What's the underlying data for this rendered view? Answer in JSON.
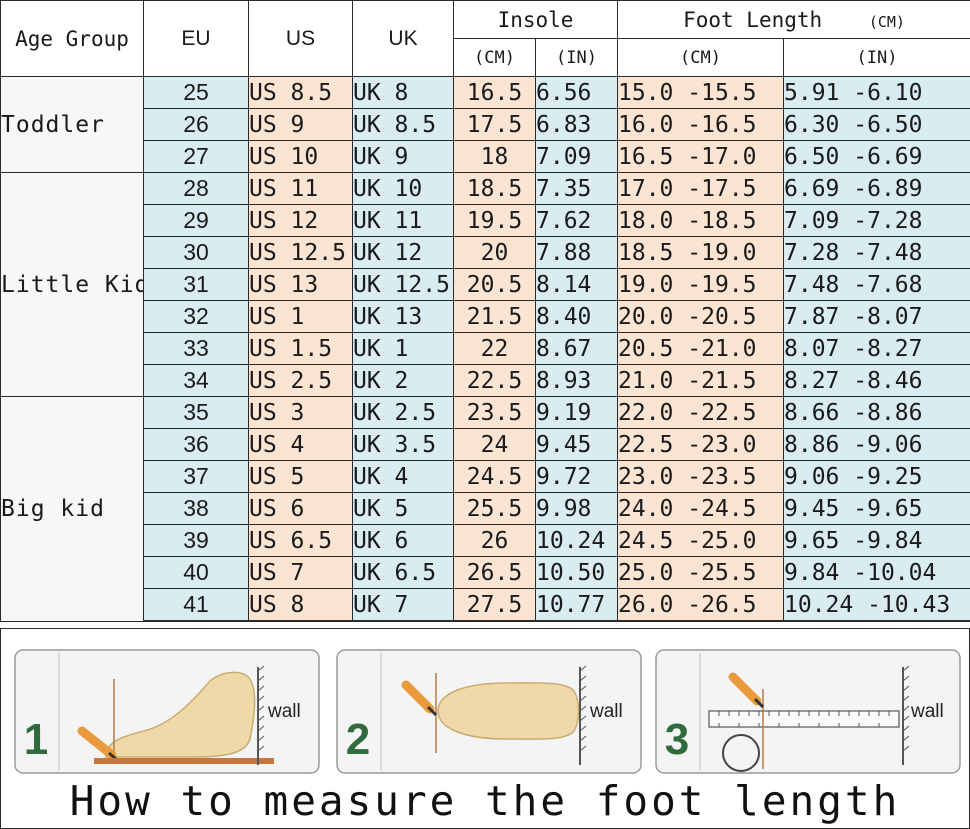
{
  "table": {
    "headers": {
      "age_group": "Age Group",
      "eu": "EU",
      "us": "US",
      "uk": "UK",
      "insole": "Insole",
      "foot_length": "Foot Length",
      "foot_length_unit": "(CM)",
      "insole_cm": "(CM)",
      "insole_in": "(IN)",
      "foot_cm": "(CM)",
      "foot_in": "(IN)"
    },
    "groups": [
      "Toddler",
      "Little Kid",
      "Big kid"
    ],
    "rows": [
      {
        "eu": "25",
        "us": "US 8.5",
        "uk": "UK 8",
        "insole_cm": "16.5",
        "insole_in": "6.56",
        "foot_cm": "15.0 -15.5",
        "foot_in": "5.91 -6.10"
      },
      {
        "eu": "26",
        "us": "US 9",
        "uk": "UK 8.5",
        "insole_cm": "17.5",
        "insole_in": "6.83",
        "foot_cm": "16.0 -16.5",
        "foot_in": "6.30 -6.50"
      },
      {
        "eu": "27",
        "us": "US 10",
        "uk": "UK 9",
        "insole_cm": "18",
        "insole_in": "7.09",
        "foot_cm": "16.5 -17.0",
        "foot_in": "6.50 -6.69"
      },
      {
        "eu": "28",
        "us": "US 11",
        "uk": "UK 10",
        "insole_cm": "18.5",
        "insole_in": "7.35",
        "foot_cm": "17.0 -17.5",
        "foot_in": "6.69 -6.89"
      },
      {
        "eu": "29",
        "us": "US 12",
        "uk": "UK 11",
        "insole_cm": "19.5",
        "insole_in": "7.62",
        "foot_cm": "18.0 -18.5",
        "foot_in": "7.09 -7.28"
      },
      {
        "eu": "30",
        "us": "US 12.5",
        "uk": "UK 12",
        "insole_cm": "20",
        "insole_in": "7.88",
        "foot_cm": "18.5 -19.0",
        "foot_in": "7.28 -7.48"
      },
      {
        "eu": "31",
        "us": "US 13",
        "uk": "UK 12.5",
        "insole_cm": "20.5",
        "insole_in": "8.14",
        "foot_cm": "19.0 -19.5",
        "foot_in": "7.48 -7.68"
      },
      {
        "eu": "32",
        "us": "US 1",
        "uk": "UK 13",
        "insole_cm": "21.5",
        "insole_in": "8.40",
        "foot_cm": "20.0 -20.5",
        "foot_in": "7.87 -8.07"
      },
      {
        "eu": "33",
        "us": "US 1.5",
        "uk": "UK 1",
        "insole_cm": "22",
        "insole_in": "8.67",
        "foot_cm": "20.5 -21.0",
        "foot_in": "8.07 -8.27"
      },
      {
        "eu": "34",
        "us": "US 2.5",
        "uk": "UK 2",
        "insole_cm": "22.5",
        "insole_in": "8.93",
        "foot_cm": "21.0 -21.5",
        "foot_in": "8.27 -8.46"
      },
      {
        "eu": "35",
        "us": "US 3",
        "uk": "UK 2.5",
        "insole_cm": "23.5",
        "insole_in": "9.19",
        "foot_cm": "22.0 -22.5",
        "foot_in": "8.66 -8.86"
      },
      {
        "eu": "36",
        "us": "US 4",
        "uk": "UK 3.5",
        "insole_cm": "24",
        "insole_in": "9.45",
        "foot_cm": "22.5 -23.0",
        "foot_in": "8.86 -9.06"
      },
      {
        "eu": "37",
        "us": "US 5",
        "uk": "UK 4",
        "insole_cm": "24.5",
        "insole_in": "9.72",
        "foot_cm": "23.0 -23.5",
        "foot_in": "9.06 -9.25"
      },
      {
        "eu": "38",
        "us": "US 6",
        "uk": "UK 5",
        "insole_cm": "25.5",
        "insole_in": "9.98",
        "foot_cm": "24.0 -24.5",
        "foot_in": "9.45 -9.65"
      },
      {
        "eu": "39",
        "us": "US 6.5",
        "uk": "UK 6",
        "insole_cm": "26",
        "insole_in": "10.24",
        "foot_cm": "24.5 -25.0",
        "foot_in": "9.65 -9.84"
      },
      {
        "eu": "40",
        "us": "US 7",
        "uk": "UK 6.5",
        "insole_cm": "26.5",
        "insole_in": "10.50",
        "foot_cm": "25.0 -25.5",
        "foot_in": "9.84 -10.04"
      },
      {
        "eu": "41",
        "us": "US 8",
        "uk": "UK 7",
        "insole_cm": "27.5",
        "insole_in": "10.77",
        "foot_cm": "26.0 -26.5",
        "foot_in": "10.24 -10.43"
      }
    ]
  },
  "guide": {
    "steps": [
      {
        "number": "1",
        "wall_label": "wall"
      },
      {
        "number": "2",
        "wall_label": "wall"
      },
      {
        "number": "3",
        "wall_label": "wall"
      }
    ],
    "caption": "How to measure the foot length"
  },
  "colors": {
    "blue_cell": "#d9ecf1",
    "peach_cell": "#fbe4d2",
    "step_number": "#2f6b3c",
    "pencil": "#e89a3c",
    "foot": "#f0d9a8"
  },
  "icons": [
    "pencil-icon",
    "foot-icon",
    "wall-icon",
    "ruler-icon"
  ]
}
